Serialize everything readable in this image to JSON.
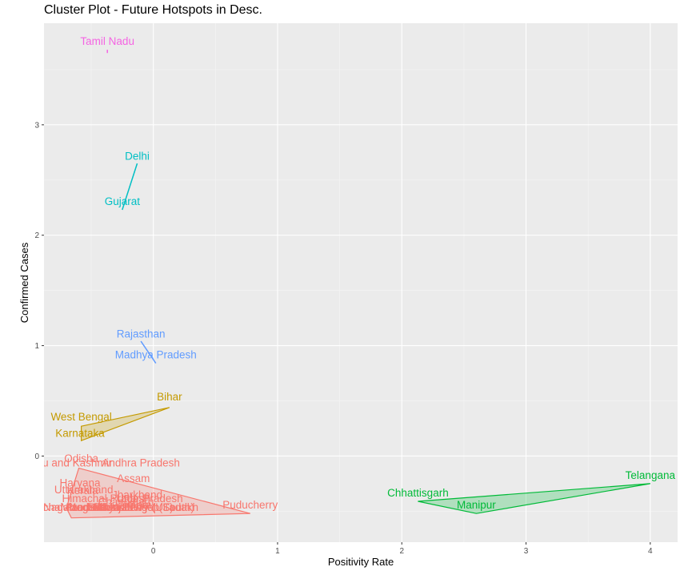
{
  "chart_data": {
    "type": "scatter",
    "title": "Cluster Plot - Future Hotspots in Desc.",
    "xlabel": "Positivity Rate",
    "ylabel": "Confirmed Cases",
    "xlim": [
      -0.88,
      4.22
    ],
    "ylim": [
      -0.78,
      3.92
    ],
    "x_ticks": [
      0,
      1,
      2,
      3,
      4
    ],
    "y_ticks": [
      0,
      1,
      2,
      3
    ],
    "grid": true,
    "panel_background": "#ebebeb",
    "clusters": [
      {
        "id": 1,
        "color": "#f8766d",
        "hull": [
          [
            -0.66,
            -0.56
          ],
          [
            0.78,
            -0.52
          ],
          [
            -0.6,
            -0.11
          ],
          [
            -0.7,
            -0.47
          ]
        ],
        "points": [
          {
            "label": "Odisha",
            "x": -0.58,
            "y": -0.02
          },
          {
            "label": "Jammu and Kashmir",
            "x": -0.73,
            "y": -0.06
          },
          {
            "label": "Andhra Pradesh",
            "x": -0.1,
            "y": -0.06
          },
          {
            "label": "Assam",
            "x": -0.16,
            "y": -0.2
          },
          {
            "label": "Haryana",
            "x": -0.59,
            "y": -0.24
          },
          {
            "label": "Kerala",
            "x": -0.57,
            "y": -0.31
          },
          {
            "label": "Uttarakhand",
            "x": -0.56,
            "y": -0.3
          },
          {
            "label": "Jharkhand",
            "x": -0.13,
            "y": -0.35
          },
          {
            "label": "Himachal Pradesh",
            "x": -0.38,
            "y": -0.38
          },
          {
            "label": "Uttar Pradesh",
            "x": -0.03,
            "y": -0.38
          },
          {
            "label": "Chandigarh",
            "x": -0.22,
            "y": -0.41
          },
          {
            "label": "Goa",
            "x": -0.12,
            "y": -0.44
          },
          {
            "label": "Tripura",
            "x": -0.15,
            "y": -0.44
          },
          {
            "label": "Arunachal Pradesh",
            "x": -0.75,
            "y": -0.46
          },
          {
            "label": "Nagaland",
            "x": -0.7,
            "y": -0.46
          },
          {
            "label": "Mizoram",
            "x": -0.58,
            "y": -0.46
          },
          {
            "label": "Meghalaya",
            "x": -0.48,
            "y": -0.46
          },
          {
            "label": "Sikkim",
            "x": -0.4,
            "y": -0.46
          },
          {
            "label": "Punjab",
            "x": -0.3,
            "y": -0.46
          },
          {
            "label": "Lakshadweep",
            "x": -0.22,
            "y": -0.46
          },
          {
            "label": "Puducherry (UT)",
            "x": -0.16,
            "y": -0.46
          },
          {
            "label": "West Bengal (South)",
            "x": -0.07,
            "y": -0.46
          },
          {
            "label": "Ladakh",
            "x": 0.22,
            "y": -0.46
          },
          {
            "label": "Puducherry",
            "x": 0.78,
            "y": -0.44
          }
        ]
      },
      {
        "id": 2,
        "color": "#c49a00",
        "hull": [
          [
            -0.58,
            0.14
          ],
          [
            0.13,
            0.44
          ],
          [
            -0.58,
            0.27
          ]
        ],
        "points": [
          {
            "label": "Bihar",
            "x": 0.13,
            "y": 0.54
          },
          {
            "label": "West Bengal",
            "x": -0.58,
            "y": 0.36
          },
          {
            "label": "Karnataka",
            "x": -0.59,
            "y": 0.21
          }
        ]
      },
      {
        "id": 3,
        "color": "#00ba38",
        "hull": [
          [
            2.13,
            -0.41
          ],
          [
            4.0,
            -0.25
          ],
          [
            2.6,
            -0.52
          ]
        ],
        "points": [
          {
            "label": "Telangana",
            "x": 4.0,
            "y": -0.17
          },
          {
            "label": "Chhattisgarh",
            "x": 2.13,
            "y": -0.33
          },
          {
            "label": "Manipur",
            "x": 2.6,
            "y": -0.44
          }
        ]
      },
      {
        "id": 4,
        "color": "#00bfc4",
        "hull": [
          [
            -0.25,
            2.23
          ],
          [
            -0.13,
            2.65
          ]
        ],
        "points": [
          {
            "label": "Delhi",
            "x": -0.13,
            "y": 2.72
          },
          {
            "label": "Gujarat",
            "x": -0.25,
            "y": 2.31
          }
        ]
      },
      {
        "id": 5,
        "color": "#619cff",
        "hull": [
          [
            -0.1,
            1.04
          ],
          [
            0.02,
            0.84
          ]
        ],
        "points": [
          {
            "label": "Rajasthan",
            "x": -0.1,
            "y": 1.11
          },
          {
            "label": "Madhya Pradesh",
            "x": 0.02,
            "y": 0.92
          }
        ]
      },
      {
        "id": 6,
        "color": "#f564e3",
        "hull": [
          [
            -0.37,
            3.68
          ],
          [
            -0.37,
            3.65
          ]
        ],
        "points": [
          {
            "label": "Tamil Nadu",
            "x": -0.37,
            "y": 3.76
          }
        ]
      }
    ]
  }
}
